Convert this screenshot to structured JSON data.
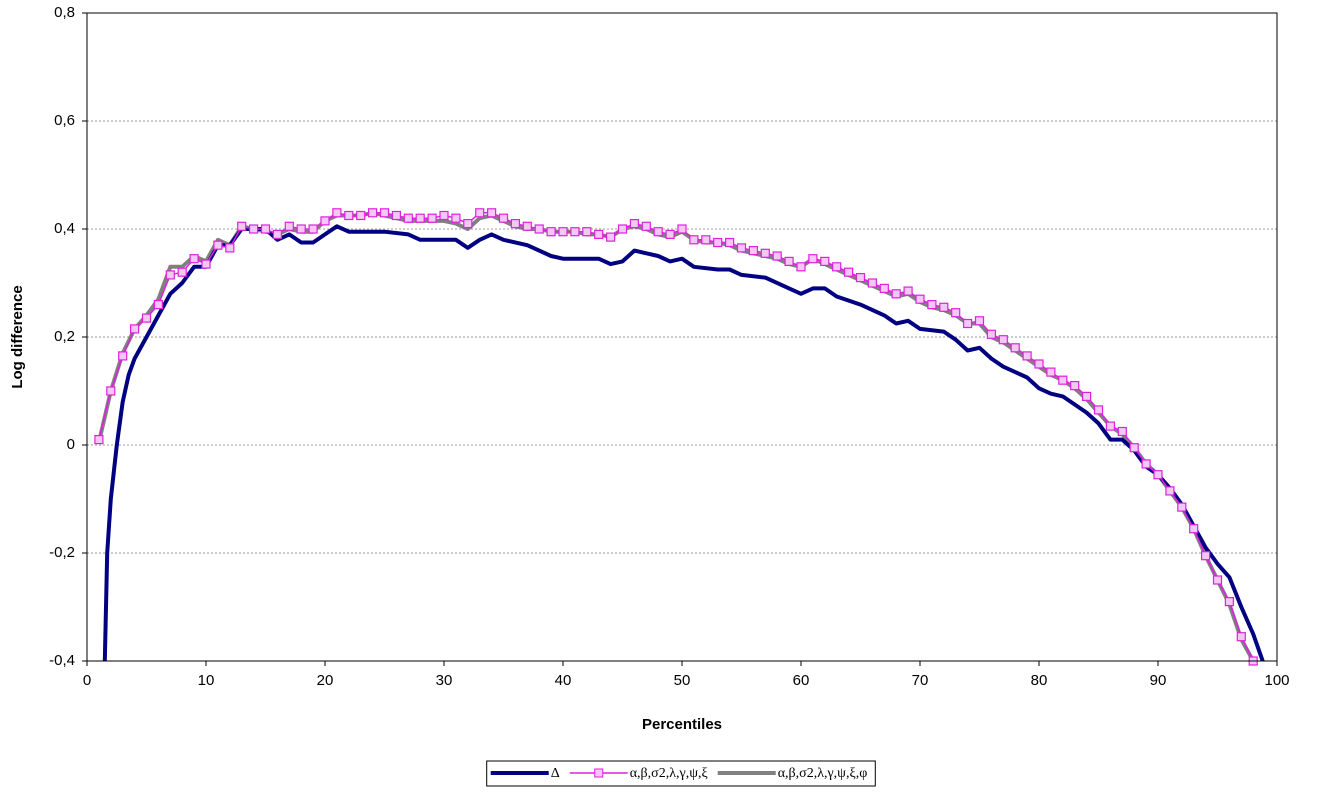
{
  "chart_data": {
    "type": "line",
    "xlabel": "Percentiles",
    "ylabel": "Log difference",
    "xlim": [
      0,
      100
    ],
    "xticks": [
      0,
      10,
      20,
      30,
      40,
      50,
      60,
      70,
      80,
      90,
      100
    ],
    "ylim": [
      -0.4,
      0.8
    ],
    "yticks": [
      {
        "value": -0.4,
        "label": "-0,4"
      },
      {
        "value": -0.2,
        "label": "-0,2"
      },
      0,
      {
        "value": 0.2,
        "label": "0,2"
      },
      {
        "value": 0.4,
        "label": "0,4"
      },
      {
        "value": 0.6,
        "label": "0,6"
      },
      {
        "value": 0.8,
        "label": "0,8"
      }
    ],
    "grid": true,
    "legend": "bottom",
    "series": [
      {
        "name": "α,β,σ2,λ,γ,ψ,ξ,φ",
        "color": "#808080",
        "width": 4,
        "x": [
          1,
          2,
          3,
          4,
          5,
          6,
          7,
          8,
          9,
          10,
          11,
          12,
          13,
          14,
          15,
          16,
          17,
          18,
          19,
          20,
          21,
          22,
          23,
          24,
          25,
          26,
          27,
          28,
          29,
          30,
          31,
          32,
          33,
          34,
          35,
          36,
          37,
          38,
          39,
          40,
          41,
          42,
          43,
          44,
          45,
          46,
          47,
          48,
          49,
          50,
          51,
          52,
          53,
          54,
          55,
          56,
          57,
          58,
          59,
          60,
          61,
          62,
          63,
          64,
          65,
          66,
          67,
          68,
          69,
          70,
          71,
          72,
          73,
          74,
          75,
          76,
          77,
          78,
          79,
          80,
          81,
          82,
          83,
          84,
          85,
          86,
          87,
          88,
          89,
          90,
          91,
          92,
          93,
          94,
          95,
          96,
          97,
          98
        ],
        "values": [
          0.005,
          0.1,
          0.17,
          0.215,
          0.24,
          0.27,
          0.33,
          0.33,
          0.35,
          0.34,
          0.38,
          0.37,
          0.405,
          0.4,
          0.395,
          0.39,
          0.4,
          0.395,
          0.395,
          0.415,
          0.425,
          0.425,
          0.425,
          0.43,
          0.425,
          0.42,
          0.415,
          0.415,
          0.415,
          0.415,
          0.41,
          0.4,
          0.42,
          0.425,
          0.415,
          0.405,
          0.4,
          0.4,
          0.395,
          0.395,
          0.395,
          0.39,
          0.39,
          0.385,
          0.4,
          0.405,
          0.4,
          0.39,
          0.385,
          0.395,
          0.38,
          0.375,
          0.375,
          0.37,
          0.36,
          0.355,
          0.35,
          0.345,
          0.335,
          0.33,
          0.345,
          0.335,
          0.325,
          0.315,
          0.305,
          0.295,
          0.285,
          0.275,
          0.28,
          0.265,
          0.255,
          0.25,
          0.24,
          0.225,
          0.225,
          0.2,
          0.19,
          0.175,
          0.16,
          0.145,
          0.13,
          0.12,
          0.105,
          0.085,
          0.06,
          0.035,
          0.02,
          -0.005,
          -0.035,
          -0.055,
          -0.085,
          -0.115,
          -0.155,
          -0.205,
          -0.25,
          -0.295,
          -0.36,
          -0.4
        ]
      },
      {
        "name": "Δ",
        "color": "#000080",
        "width": 4,
        "x": [
          1.5,
          1.7,
          2,
          2.5,
          3,
          3.5,
          4,
          5,
          6,
          7,
          8,
          9,
          10,
          11,
          12,
          13,
          14,
          15,
          16,
          17,
          18,
          19,
          20,
          21,
          22,
          25,
          27,
          28,
          31,
          32,
          33,
          34,
          35,
          37,
          39,
          40,
          43,
          44,
          45,
          46,
          47,
          48,
          49,
          50,
          51,
          53,
          54,
          55,
          57,
          59,
          60,
          61,
          62,
          63,
          65,
          67,
          68,
          69,
          70,
          72,
          73,
          74,
          75,
          76,
          77,
          78,
          79,
          80,
          81,
          82,
          83,
          84,
          85,
          86,
          87,
          88,
          89,
          90,
          91,
          92,
          93,
          94,
          95,
          96,
          97,
          98,
          98.8
        ],
        "values": [
          -0.4,
          -0.2,
          -0.1,
          0.0,
          0.08,
          0.13,
          0.16,
          0.2,
          0.24,
          0.28,
          0.3,
          0.33,
          0.33,
          0.37,
          0.37,
          0.4,
          0.4,
          0.4,
          0.38,
          0.39,
          0.375,
          0.375,
          0.39,
          0.405,
          0.395,
          0.395,
          0.39,
          0.38,
          0.38,
          0.365,
          0.38,
          0.39,
          0.38,
          0.37,
          0.35,
          0.345,
          0.345,
          0.335,
          0.34,
          0.36,
          0.355,
          0.35,
          0.34,
          0.345,
          0.33,
          0.325,
          0.325,
          0.315,
          0.31,
          0.29,
          0.28,
          0.29,
          0.29,
          0.275,
          0.26,
          0.24,
          0.225,
          0.23,
          0.215,
          0.21,
          0.195,
          0.175,
          0.18,
          0.16,
          0.145,
          0.135,
          0.125,
          0.105,
          0.095,
          0.09,
          0.075,
          0.06,
          0.04,
          0.01,
          0.01,
          -0.01,
          -0.04,
          -0.055,
          -0.08,
          -0.11,
          -0.15,
          -0.19,
          -0.22,
          -0.245,
          -0.3,
          -0.35,
          -0.4
        ]
      },
      {
        "name": "α,β,σ2,λ,γ,ψ,ξ",
        "color": "#dd22dd",
        "width": 1.5,
        "marker": "square",
        "x": [
          1,
          2,
          3,
          4,
          5,
          6,
          7,
          8,
          9,
          10,
          11,
          12,
          13,
          14,
          15,
          16,
          17,
          18,
          19,
          20,
          21,
          22,
          23,
          24,
          25,
          26,
          27,
          28,
          29,
          30,
          31,
          32,
          33,
          34,
          35,
          36,
          37,
          38,
          39,
          40,
          41,
          42,
          43,
          44,
          45,
          46,
          47,
          48,
          49,
          50,
          51,
          52,
          53,
          54,
          55,
          56,
          57,
          58,
          59,
          60,
          61,
          62,
          63,
          64,
          65,
          66,
          67,
          68,
          69,
          70,
          71,
          72,
          73,
          74,
          75,
          76,
          77,
          78,
          79,
          80,
          81,
          82,
          83,
          84,
          85,
          86,
          87,
          88,
          89,
          90,
          91,
          92,
          93,
          94,
          95,
          96,
          97,
          98
        ],
        "values": [
          0.01,
          0.1,
          0.165,
          0.215,
          0.235,
          0.26,
          0.315,
          0.32,
          0.345,
          0.335,
          0.37,
          0.365,
          0.405,
          0.4,
          0.4,
          0.39,
          0.405,
          0.4,
          0.4,
          0.415,
          0.43,
          0.425,
          0.425,
          0.43,
          0.43,
          0.425,
          0.42,
          0.42,
          0.42,
          0.425,
          0.42,
          0.41,
          0.43,
          0.43,
          0.42,
          0.41,
          0.405,
          0.4,
          0.395,
          0.395,
          0.395,
          0.395,
          0.39,
          0.385,
          0.4,
          0.41,
          0.405,
          0.395,
          0.39,
          0.4,
          0.38,
          0.38,
          0.375,
          0.375,
          0.365,
          0.36,
          0.355,
          0.35,
          0.34,
          0.33,
          0.345,
          0.34,
          0.33,
          0.32,
          0.31,
          0.3,
          0.29,
          0.28,
          0.285,
          0.27,
          0.26,
          0.255,
          0.245,
          0.225,
          0.23,
          0.205,
          0.195,
          0.18,
          0.165,
          0.15,
          0.135,
          0.12,
          0.11,
          0.09,
          0.065,
          0.035,
          0.025,
          -0.005,
          -0.035,
          -0.055,
          -0.085,
          -0.115,
          -0.155,
          -0.205,
          -0.25,
          -0.29,
          -0.355,
          -0.4
        ]
      }
    ]
  }
}
